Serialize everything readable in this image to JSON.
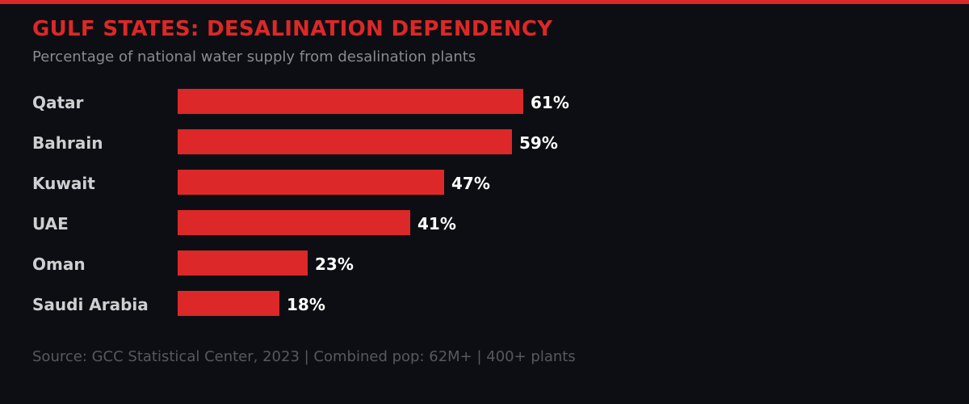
{
  "colors": {
    "background": "#0d0e13",
    "accent": "#dc2828",
    "label": "#cfcfd2",
    "value": "#ffffff",
    "subtitle": "#8a8a8e",
    "footer": "#58585c"
  },
  "header": {
    "title": "GULF STATES: DESALINATION DEPENDENCY",
    "subtitle": "Percentage of national water supply from desalination plants"
  },
  "footer": {
    "text": "Source: GCC Statistical Center, 2023 | Combined pop: 62M+ | 400+ plants"
  },
  "chart_data": {
    "type": "bar",
    "orientation": "horizontal",
    "title": "GULF STATES: DESALINATION DEPENDENCY",
    "subtitle": "Percentage of national water supply from desalination plants",
    "categories": [
      "Qatar",
      "Bahrain",
      "Kuwait",
      "UAE",
      "Oman",
      "Saudi Arabia"
    ],
    "values": [
      61,
      59,
      47,
      41,
      23,
      18
    ],
    "value_labels": [
      "61%",
      "59%",
      "47%",
      "41%",
      "23%",
      "18%"
    ],
    "xlabel": "",
    "ylabel": "",
    "xlim": [
      0,
      100
    ],
    "unit": "%",
    "grid": false,
    "legend": "none",
    "annotation": "Source: GCC Statistical Center, 2023 | Combined pop: 62M+ | 400+ plants"
  }
}
